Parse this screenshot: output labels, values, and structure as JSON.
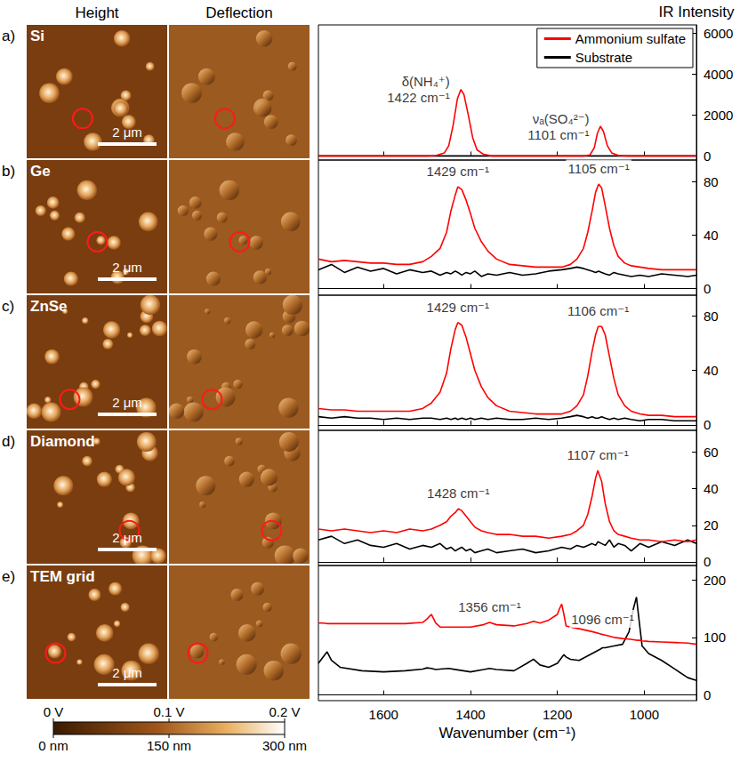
{
  "figure": {
    "columns": [
      "Height",
      "Deflection"
    ],
    "scale_bar": "2 μm",
    "colorbars": [
      {
        "range": [
          0,
          0.2
        ],
        "ticks": [
          {
            "value": 0,
            "label": "0 V"
          },
          {
            "value": 0.1,
            "label": "0.1 V"
          },
          {
            "value": 0.2,
            "label": "0.2 V"
          }
        ]
      },
      {
        "range": [
          0,
          300
        ],
        "ticks": [
          {
            "value": 0,
            "label": "0 nm"
          },
          {
            "value": 150,
            "label": "150 nm"
          },
          {
            "value": 300,
            "label": "300 nm"
          }
        ]
      }
    ]
  },
  "chart_data": [
    {
      "type": "line",
      "panel": "a)",
      "title": "Si",
      "ylabel": "IR Intensity",
      "legend": "upper right",
      "grid": false,
      "tick_labels": "y",
      "xlim": [
        1750,
        880
      ],
      "xticks": [
        1600,
        1400,
        1200,
        1000
      ],
      "ylim": [
        -200,
        6400
      ],
      "yticks": [
        0,
        2000,
        4000,
        6000
      ],
      "x": [
        1750,
        1700,
        1650,
        1600,
        1550,
        1500,
        1480,
        1460,
        1450,
        1440,
        1430,
        1422,
        1415,
        1405,
        1395,
        1385,
        1370,
        1350,
        1300,
        1250,
        1200,
        1160,
        1140,
        1125,
        1115,
        1108,
        1101,
        1094,
        1085,
        1075,
        1060,
        1040,
        1000,
        950,
        900,
        880
      ],
      "series": [
        {
          "name": "Ammonium sulfate",
          "color": "#ff0000",
          "values": [
            0,
            0,
            0,
            0,
            0,
            0,
            20,
            150,
            500,
            1500,
            2800,
            3250,
            3000,
            2000,
            900,
            300,
            80,
            0,
            0,
            0,
            0,
            0,
            0,
            50,
            400,
            1100,
            1450,
            1200,
            500,
            150,
            30,
            0,
            0,
            0,
            0,
            0
          ]
        },
        {
          "name": "Substrate",
          "color": "#000000",
          "values": [
            0,
            0,
            0,
            0,
            0,
            0,
            0,
            0,
            0,
            0,
            0,
            0,
            0,
            0,
            0,
            0,
            0,
            0,
            0,
            0,
            0,
            0,
            0,
            0,
            0,
            0,
            0,
            0,
            0,
            0,
            0,
            0,
            0,
            0,
            0,
            0
          ]
        }
      ],
      "annotations": [
        {
          "text": [
            "δ(NH₄⁺)",
            "1422 cm⁻¹"
          ],
          "x": 1422,
          "y": 3250
        },
        {
          "text": [
            "νₐ(SO₄²⁻)",
            "1101 cm⁻¹"
          ],
          "x": 1101,
          "y": 1450
        }
      ]
    },
    {
      "type": "line",
      "panel": "b)",
      "title": "Ge",
      "grid": false,
      "tick_labels": "y",
      "xlim": [
        1750,
        880
      ],
      "xticks": [
        1600,
        1400,
        1200,
        1000
      ],
      "ylim": [
        -5,
        96
      ],
      "yticks": [
        0,
        40,
        80
      ],
      "x": [
        1750,
        1720,
        1690,
        1660,
        1630,
        1600,
        1570,
        1540,
        1510,
        1490,
        1470,
        1455,
        1445,
        1435,
        1429,
        1420,
        1410,
        1400,
        1390,
        1375,
        1360,
        1340,
        1310,
        1280,
        1250,
        1220,
        1190,
        1170,
        1155,
        1140,
        1130,
        1120,
        1112,
        1105,
        1098,
        1090,
        1080,
        1070,
        1060,
        1045,
        1030,
        1010,
        990,
        960,
        930,
        900,
        880
      ],
      "series": [
        {
          "name": "Ammonium sulfate",
          "color": "#ff0000",
          "values": [
            22,
            20,
            21,
            20,
            19,
            19,
            18,
            18,
            20,
            24,
            30,
            42,
            58,
            70,
            76,
            74,
            66,
            56,
            45,
            35,
            28,
            22,
            18,
            17,
            16,
            16,
            16,
            18,
            22,
            30,
            42,
            58,
            72,
            78,
            75,
            62,
            45,
            32,
            24,
            19,
            17,
            16,
            15,
            14,
            14,
            14,
            14
          ]
        },
        {
          "name": "Substrate",
          "color": "#000000",
          "values": [
            14,
            18,
            12,
            16,
            13,
            15,
            11,
            14,
            12,
            13,
            10,
            12,
            11,
            13,
            12,
            10,
            12,
            11,
            13,
            9,
            11,
            10,
            12,
            10,
            11,
            13,
            14,
            15,
            16,
            15,
            14,
            13,
            12,
            13,
            12,
            11,
            10,
            12,
            11,
            10,
            9,
            10,
            9,
            11,
            10,
            9,
            10
          ]
        }
      ],
      "annotations": [
        {
          "text": [
            "1429 cm⁻¹"
          ],
          "x": 1429,
          "y": 76
        },
        {
          "text": [
            "1105 cm⁻¹"
          ],
          "x": 1105,
          "y": 78
        }
      ]
    },
    {
      "type": "line",
      "panel": "c)",
      "title": "ZnSe",
      "grid": false,
      "tick_labels": "y",
      "xlim": [
        1750,
        880
      ],
      "xticks": [
        1600,
        1400,
        1200,
        1000
      ],
      "ylim": [
        -4,
        95
      ],
      "yticks": [
        0,
        40,
        80
      ],
      "x": [
        1750,
        1720,
        1690,
        1660,
        1630,
        1600,
        1570,
        1540,
        1510,
        1490,
        1470,
        1455,
        1445,
        1435,
        1429,
        1420,
        1410,
        1400,
        1390,
        1375,
        1360,
        1340,
        1310,
        1280,
        1250,
        1220,
        1190,
        1170,
        1155,
        1140,
        1130,
        1120,
        1112,
        1106,
        1098,
        1090,
        1080,
        1070,
        1060,
        1045,
        1030,
        1010,
        990,
        960,
        930,
        900,
        880
      ],
      "series": [
        {
          "name": "Ammonium sulfate",
          "color": "#ff0000",
          "values": [
            12,
            11,
            11,
            10,
            10,
            10,
            10,
            10,
            12,
            16,
            24,
            38,
            56,
            70,
            75,
            73,
            64,
            52,
            40,
            28,
            20,
            14,
            10,
            9,
            8,
            8,
            8,
            10,
            14,
            22,
            36,
            54,
            66,
            72,
            72,
            66,
            50,
            34,
            22,
            14,
            10,
            8,
            7,
            7,
            6,
            6,
            6
          ]
        },
        {
          "name": "Substrate",
          "color": "#000000",
          "values": [
            6,
            5,
            6,
            5,
            5,
            4,
            5,
            4,
            5,
            5,
            4,
            5,
            4,
            5,
            4,
            5,
            4,
            5,
            4,
            5,
            4,
            5,
            4,
            4,
            5,
            4,
            5,
            6,
            7,
            6,
            5,
            6,
            5,
            5,
            6,
            5,
            4,
            5,
            4,
            5,
            4,
            3,
            4,
            4,
            3,
            3,
            3
          ]
        }
      ],
      "annotations": [
        {
          "text": [
            "1429 cm⁻¹"
          ],
          "x": 1429,
          "y": 75
        },
        {
          "text": [
            "1106 cm⁻¹"
          ],
          "x": 1106,
          "y": 72
        }
      ]
    },
    {
      "type": "line",
      "panel": "d)",
      "title": "Diamond",
      "grid": false,
      "tick_labels": "y",
      "xlim": [
        1750,
        880
      ],
      "xticks": [
        1600,
        1400,
        1200,
        1000
      ],
      "ylim": [
        -2,
        72
      ],
      "yticks": [
        0,
        20,
        40,
        60
      ],
      "x": [
        1750,
        1720,
        1690,
        1660,
        1630,
        1600,
        1570,
        1540,
        1510,
        1490,
        1470,
        1455,
        1445,
        1435,
        1428,
        1420,
        1410,
        1400,
        1390,
        1375,
        1360,
        1340,
        1310,
        1280,
        1250,
        1220,
        1190,
        1170,
        1155,
        1140,
        1130,
        1120,
        1112,
        1107,
        1098,
        1090,
        1080,
        1070,
        1060,
        1045,
        1030,
        1010,
        990,
        960,
        930,
        900,
        880
      ],
      "series": [
        {
          "name": "Ammonium sulfate",
          "color": "#ff0000",
          "values": [
            18,
            17,
            18,
            17,
            16,
            17,
            16,
            18,
            17,
            18,
            20,
            22,
            25,
            27,
            29,
            28,
            25,
            22,
            19,
            17,
            16,
            15,
            15,
            14,
            14,
            13,
            14,
            15,
            17,
            20,
            26,
            36,
            46,
            50,
            44,
            32,
            22,
            17,
            15,
            14,
            13,
            12,
            12,
            11,
            12,
            11,
            12
          ]
        },
        {
          "name": "Substrate",
          "color": "#000000",
          "values": [
            12,
            14,
            10,
            12,
            9,
            8,
            10,
            7,
            9,
            8,
            10,
            7,
            8,
            6,
            7,
            8,
            6,
            7,
            5,
            6,
            7,
            5,
            6,
            7,
            5,
            6,
            8,
            7,
            9,
            8,
            9,
            10,
            9,
            11,
            10,
            9,
            12,
            8,
            10,
            9,
            6,
            10,
            8,
            11,
            9,
            12,
            10
          ]
        }
      ],
      "annotations": [
        {
          "text": [
            "1428 cm⁻¹"
          ],
          "x": 1428,
          "y": 29
        },
        {
          "text": [
            "1107 cm⁻¹"
          ],
          "x": 1107,
          "y": 50
        }
      ]
    },
    {
      "type": "line",
      "panel": "e)",
      "title": "TEM grid",
      "xlabel": "Wavenumber (cm⁻¹)",
      "grid": false,
      "xlim": [
        1750,
        880
      ],
      "xticks": [
        1600,
        1400,
        1200,
        1000
      ],
      "ylim": [
        -10,
        225
      ],
      "yticks": [
        0,
        100,
        200
      ],
      "x": [
        1750,
        1740,
        1730,
        1720,
        1700,
        1650,
        1600,
        1550,
        1510,
        1500,
        1490,
        1480,
        1470,
        1450,
        1400,
        1370,
        1356,
        1340,
        1300,
        1270,
        1255,
        1240,
        1220,
        1200,
        1195,
        1190,
        1185,
        1180,
        1170,
        1150,
        1120,
        1100,
        1096,
        1090,
        1070,
        1050,
        1035,
        1025,
        1018,
        1012,
        1005,
        990,
        960,
        930,
        900,
        880
      ],
      "series": [
        {
          "name": "Ammonium sulfate",
          "color": "#ff0000",
          "values": [
            125,
            125,
            124,
            124,
            124,
            124,
            124,
            124,
            126,
            132,
            140,
            125,
            118,
            118,
            118,
            122,
            126,
            122,
            120,
            124,
            128,
            125,
            130,
            140,
            150,
            158,
            140,
            120,
            118,
            115,
            110,
            106,
            105,
            104,
            100,
            98,
            97,
            96,
            95,
            95,
            94,
            93,
            92,
            91,
            90,
            88
          ]
        },
        {
          "name": "Substrate",
          "color": "#000000",
          "values": [
            55,
            65,
            75,
            60,
            48,
            42,
            40,
            42,
            45,
            47,
            46,
            44,
            45,
            46,
            40,
            44,
            46,
            44,
            42,
            55,
            62,
            52,
            48,
            55,
            60,
            65,
            70,
            66,
            62,
            60,
            72,
            80,
            82,
            82,
            85,
            88,
            110,
            150,
            170,
            130,
            85,
            72,
            60,
            45,
            30,
            25
          ]
        }
      ],
      "annotations": [
        {
          "text": [
            "1356 cm⁻¹"
          ],
          "x": 1356,
          "y": 126
        },
        {
          "text": [
            "1096 cm⁻¹"
          ],
          "x": 1096,
          "y": 105
        }
      ]
    }
  ]
}
